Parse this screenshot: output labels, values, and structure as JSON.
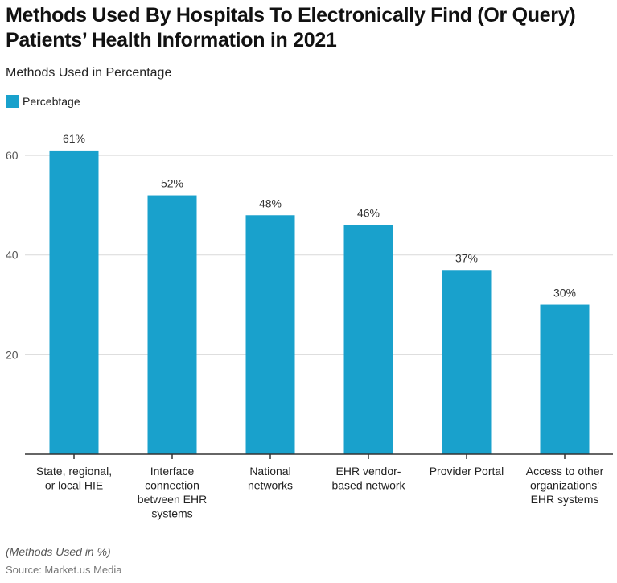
{
  "chart_data": {
    "type": "bar",
    "title": "Methods Used By Hospitals To Electronically Find (Or Query) Patients’ Health Information in 2021",
    "subtitle": "Methods Used in Percentage",
    "xlabel": "",
    "ylabel": "",
    "categories": [
      [
        "State, regional,",
        "or local HIE"
      ],
      [
        "Interface",
        "connection",
        "between EHR",
        "systems"
      ],
      [
        "National",
        "networks"
      ],
      [
        "EHR vendor-",
        "based network"
      ],
      [
        "Provider Portal"
      ],
      [
        "Access to other",
        "organizations'",
        "EHR systems"
      ]
    ],
    "series": [
      {
        "name": "Percebtage",
        "color": "#19a1cc",
        "values": [
          61,
          52,
          48,
          46,
          37,
          30
        ],
        "labels": [
          "61%",
          "52%",
          "48%",
          "46%",
          "37%",
          "30%"
        ]
      }
    ],
    "ylim": [
      0,
      66
    ],
    "yticks": [
      20,
      40,
      60
    ],
    "grid": true,
    "legend": "top-left"
  },
  "legend": {
    "label": "Percebtage",
    "color": "#19a1cc"
  },
  "footer": {
    "note": "(Methods Used in %)",
    "source": "Source: Market.us Media"
  }
}
